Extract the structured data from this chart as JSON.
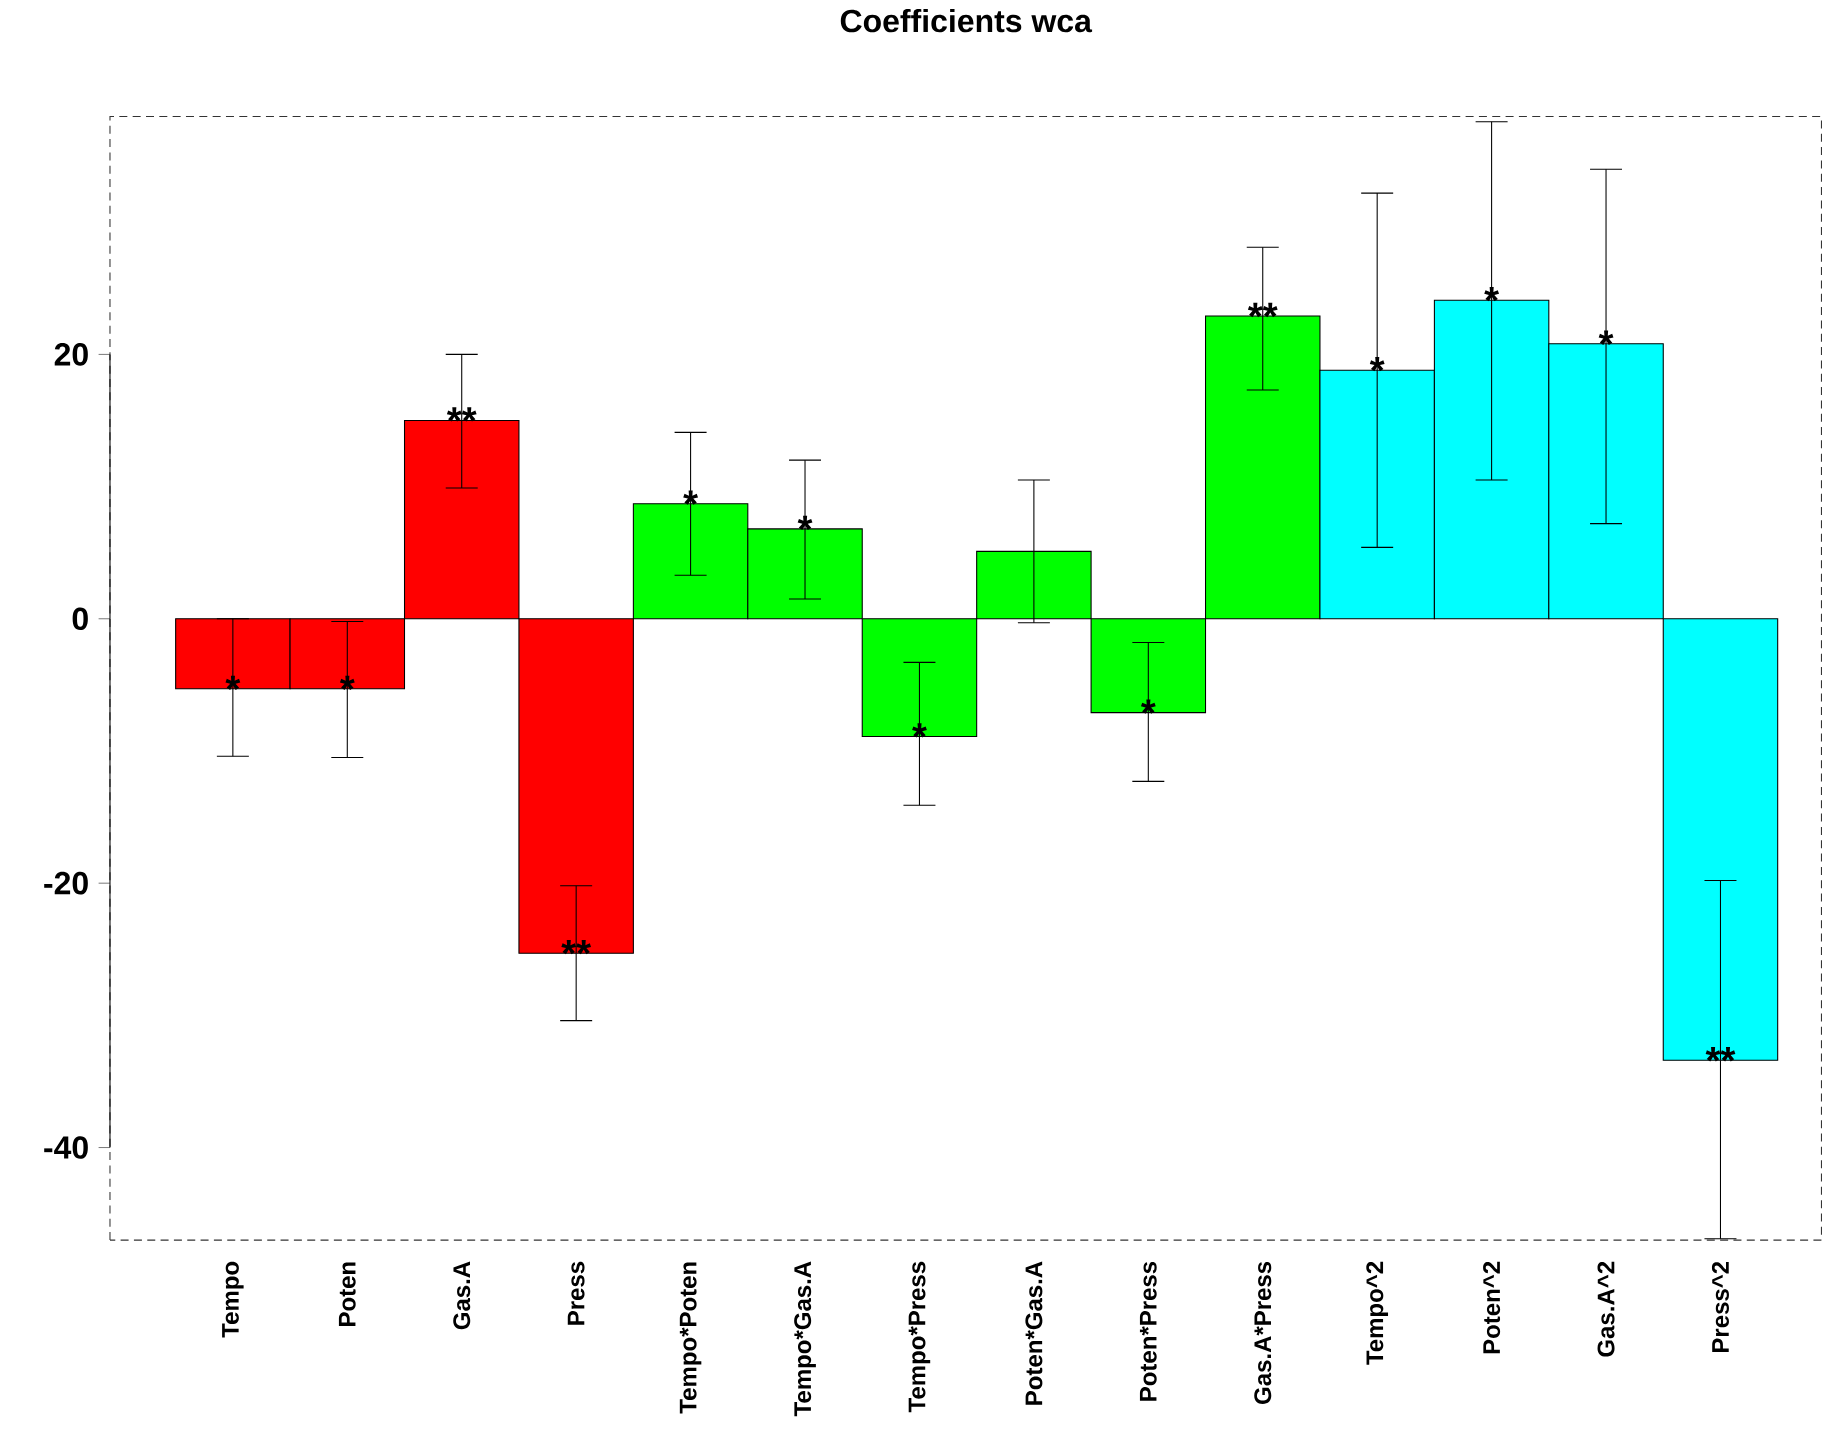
{
  "chart_data": {
    "type": "bar",
    "title": "Coefficients wca",
    "categories": [
      "Tempo",
      "Poten",
      "Gas.A",
      "Press",
      "Tempo*Poten",
      "Tempo*Gas.A",
      "Tempo*Press",
      "Poten*Gas.A",
      "Poten*Press",
      "Gas.A*Press",
      "Tempo^2",
      "Poten^2",
      "Gas.A^2",
      "Press^2"
    ],
    "values": [
      -5.3,
      -5.3,
      15.0,
      -25.3,
      8.7,
      6.8,
      -8.9,
      5.1,
      -7.1,
      22.9,
      18.8,
      24.1,
      20.8,
      -33.4
    ],
    "colors": [
      "#ff0000",
      "#ff0000",
      "#ff0000",
      "#ff0000",
      "#00ff00",
      "#00ff00",
      "#00ff00",
      "#00ff00",
      "#00ff00",
      "#00ff00",
      "#00ffff",
      "#00ffff",
      "#00ffff",
      "#00ffff"
    ],
    "errors": [
      [
        -10.4,
        0.0
      ],
      [
        -10.5,
        -0.2
      ],
      [
        9.9,
        20.0
      ],
      [
        -30.4,
        -20.2
      ],
      [
        3.3,
        14.1
      ],
      [
        1.5,
        12.0
      ],
      [
        -14.1,
        -3.3
      ],
      [
        -0.3,
        10.5
      ],
      [
        -12.3,
        -1.8
      ],
      [
        17.3,
        28.1
      ],
      [
        5.4,
        32.2
      ],
      [
        10.5,
        37.6
      ],
      [
        7.2,
        34.0
      ],
      [
        -46.9,
        -19.8
      ]
    ],
    "value_labels": [
      "*",
      "*",
      "**",
      "**",
      "*",
      "*",
      "*",
      null,
      "*",
      "**",
      "*",
      "*",
      "*",
      "**"
    ],
    "ylim": [
      -47,
      38
    ],
    "yticks": [
      -40,
      -20,
      0,
      20
    ],
    "grid": false
  }
}
